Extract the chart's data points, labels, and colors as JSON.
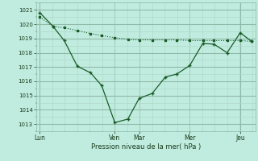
{
  "title": "",
  "xlabel": "Pression niveau de la mer( hPa )",
  "bg_color": "#c0ece0",
  "grid_color_major": "#90b8a8",
  "grid_color_minor": "#b0d8c8",
  "line_color": "#1a5c28",
  "ylim": [
    1012.5,
    1021.5
  ],
  "y_ticks": [
    1013,
    1014,
    1015,
    1016,
    1017,
    1018,
    1019,
    1020,
    1021
  ],
  "x_day_labels": [
    "Lun",
    "Ven",
    "Mar",
    "Mer",
    "Jeu"
  ],
  "x_day_positions": [
    0,
    40,
    53,
    80,
    107
  ],
  "xlim": [
    -2,
    115
  ],
  "series1_x": [
    0,
    7,
    13,
    20,
    27,
    33,
    40,
    47,
    53,
    60,
    67,
    73,
    80,
    87,
    93,
    100,
    107,
    113
  ],
  "series1_y": [
    1020.5,
    1019.85,
    1019.75,
    1019.55,
    1019.35,
    1019.2,
    1019.05,
    1018.95,
    1018.9,
    1018.9,
    1018.9,
    1018.9,
    1018.85,
    1018.85,
    1018.85,
    1018.85,
    1018.85,
    1018.8
  ],
  "series2_x": [
    0,
    7,
    13,
    20,
    27,
    33,
    40,
    47,
    53,
    60,
    67,
    73,
    80,
    87,
    93,
    100,
    107,
    113
  ],
  "series2_y": [
    1020.8,
    1019.85,
    1018.85,
    1017.05,
    1016.6,
    1015.7,
    1013.1,
    1013.35,
    1014.8,
    1015.15,
    1016.3,
    1016.5,
    1017.1,
    1018.65,
    1018.6,
    1018.0,
    1019.4,
    1018.8
  ],
  "figsize": [
    3.2,
    2.0
  ],
  "dpi": 100
}
